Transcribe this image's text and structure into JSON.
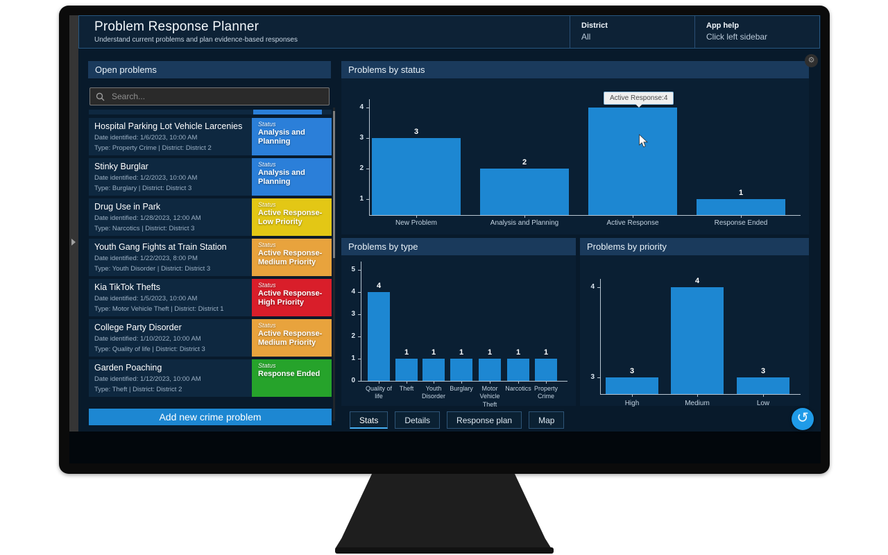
{
  "theme": {
    "bar_color": "#1d87d2",
    "accent": "#1f9be8"
  },
  "app": {
    "title": "Problem Response Planner",
    "subtitle": "Understand current problems and plan evidence-based responses",
    "district": {
      "label": "District",
      "value": "All"
    },
    "help": {
      "label": "App help",
      "value": "Click left sidebar"
    }
  },
  "sidebar": {
    "header": "Open problems",
    "search_placeholder": "Search...",
    "status_label": "Status",
    "add_button": "Add new crime problem",
    "problems": [
      {
        "title": "Hospital Parking Lot Vehicle Larcenies",
        "date": "Date identified: 1/6/2023, 10:00 AM",
        "meta": "Type: Property Crime  |  District: District 2",
        "status": "Analysis and Planning",
        "color": "#2b7fd9"
      },
      {
        "title": "Stinky Burglar",
        "date": "Date identified: 1/2/2023, 10:00 AM",
        "meta": "Type: Burglary  |  District: District 3",
        "status": "Analysis and Planning",
        "color": "#2b7fd9"
      },
      {
        "title": "Drug Use in Park",
        "date": "Date identified: 1/28/2023, 12:00 AM",
        "meta": "Type: Narcotics  |  District: District 3",
        "status": "Active Response-Low Priority",
        "color": "#e3c715"
      },
      {
        "title": "Youth Gang Fights at Train Station",
        "date": "Date identified: 1/22/2023, 8:00 PM",
        "meta": "Type: Youth Disorder  |  District: District 3",
        "status": "Active Response-Medium Priority",
        "color": "#e8a33d"
      },
      {
        "title": "Kia TikTok Thefts",
        "date": "Date identified: 1/5/2023, 10:00 AM",
        "meta": "Type: Motor Vehicle Theft  |  District: District 1",
        "status": "Active Response-High Priority",
        "color": "#d91e2a"
      },
      {
        "title": "College Party Disorder",
        "date": "Date identified: 1/10/2022, 10:00 AM",
        "meta": "Type: Quality of life  |  District: District 3",
        "status": "Active Response-Medium Priority",
        "color": "#e8a33d"
      },
      {
        "title": "Garden Poaching",
        "date": "Date identified: 1/12/2023, 10:00 AM",
        "meta": "Type: Theft  |  District: District 2",
        "status": "Response Ended",
        "color": "#26a32b"
      }
    ]
  },
  "panels": {
    "status": "Problems by status",
    "type": "Problems by type",
    "priority": "Problems by priority"
  },
  "tooltip": {
    "text": "Active Response:4"
  },
  "tabs": [
    {
      "label": "Stats",
      "active": true
    },
    {
      "label": "Details",
      "active": false
    },
    {
      "label": "Response plan",
      "active": false
    },
    {
      "label": "Map",
      "active": false
    }
  ],
  "icons": {
    "search": "magnifier",
    "refresh": "rotate-ccw",
    "settings": "gear",
    "sidebar_toggle": "chevron-right"
  },
  "chart_data": [
    {
      "type": "bar",
      "title": "Problems by status",
      "categories": [
        "New Problem",
        "Analysis and Planning",
        "Active Response",
        "Response Ended"
      ],
      "values": [
        3,
        2,
        4,
        1
      ],
      "yticks": [
        1,
        2,
        3,
        4
      ],
      "xlabel": "",
      "ylabel": "",
      "legend": false,
      "grid": false,
      "bar_color": "#1d87d2",
      "hover_tooltip": "Active Response:4"
    },
    {
      "type": "bar",
      "title": "Problems by type",
      "categories": [
        "Quality of life",
        "Theft",
        "Youth Disorder",
        "Burglary",
        "Motor Vehicle Theft",
        "Narcotics",
        "Property Crime"
      ],
      "values": [
        4,
        1,
        1,
        1,
        1,
        1,
        1
      ],
      "yticks": [
        0,
        1,
        2,
        3,
        4,
        5
      ],
      "xlabel": "",
      "ylabel": "",
      "legend": false,
      "grid": false,
      "bar_color": "#1d87d2"
    },
    {
      "type": "bar",
      "title": "Problems by priority",
      "categories": [
        "High",
        "Medium",
        "Low"
      ],
      "values": [
        3,
        4,
        3
      ],
      "yticks": [
        3,
        4
      ],
      "ylim": [
        2.8,
        4.2
      ],
      "xlabel": "",
      "ylabel": "",
      "legend": false,
      "grid": false,
      "bar_color": "#1d87d2"
    }
  ]
}
